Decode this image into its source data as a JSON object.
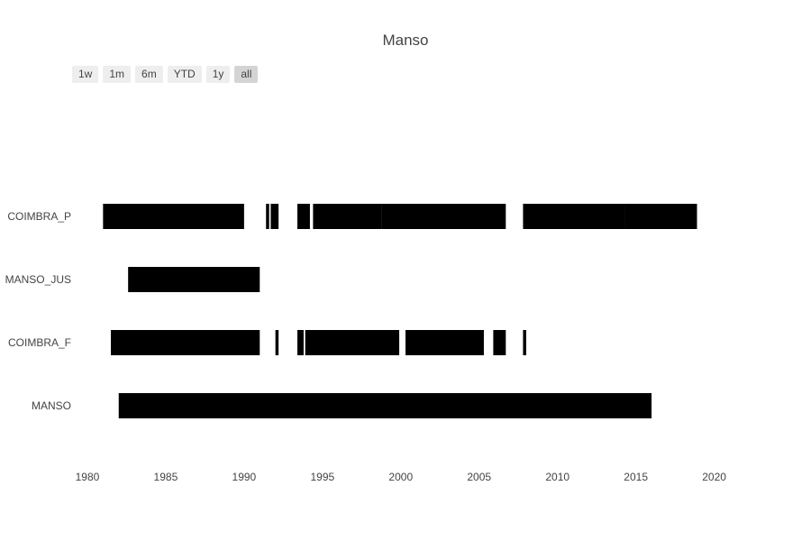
{
  "chart_data": {
    "type": "timeline",
    "title": "Manso",
    "range_buttons": [
      "1w",
      "1m",
      "6m",
      "YTD",
      "1y",
      "all"
    ],
    "active_range": "all",
    "bar_color": "#000000",
    "xlim": [
      1979.6,
      2021
    ],
    "x_ticks": [
      1980,
      1985,
      1990,
      1995,
      2000,
      2005,
      2010,
      2015,
      2020
    ],
    "series": [
      {
        "name": "COIMBRA_P",
        "segments": [
          [
            1981.0,
            1990.0
          ],
          [
            1991.4,
            1991.6
          ],
          [
            1991.7,
            1992.2
          ],
          [
            1993.4,
            1994.2
          ],
          [
            1994.4,
            1998.8
          ],
          [
            1998.8,
            2006.7
          ],
          [
            2007.8,
            2014.3
          ],
          [
            2014.3,
            2018.9
          ]
        ]
      },
      {
        "name": "MANSO_JUS",
        "segments": [
          [
            1982.6,
            1991.0
          ]
        ]
      },
      {
        "name": "COIMBRA_F",
        "segments": [
          [
            1981.5,
            1991.0
          ],
          [
            1992.0,
            1992.2
          ],
          [
            1993.4,
            1993.8
          ],
          [
            1993.9,
            1999.9
          ],
          [
            2000.3,
            2005.3
          ],
          [
            2005.9,
            2006.7
          ],
          [
            2007.8,
            2008.0
          ]
        ]
      },
      {
        "name": "MANSO",
        "segments": [
          [
            1982.0,
            2016.0
          ]
        ]
      }
    ]
  }
}
